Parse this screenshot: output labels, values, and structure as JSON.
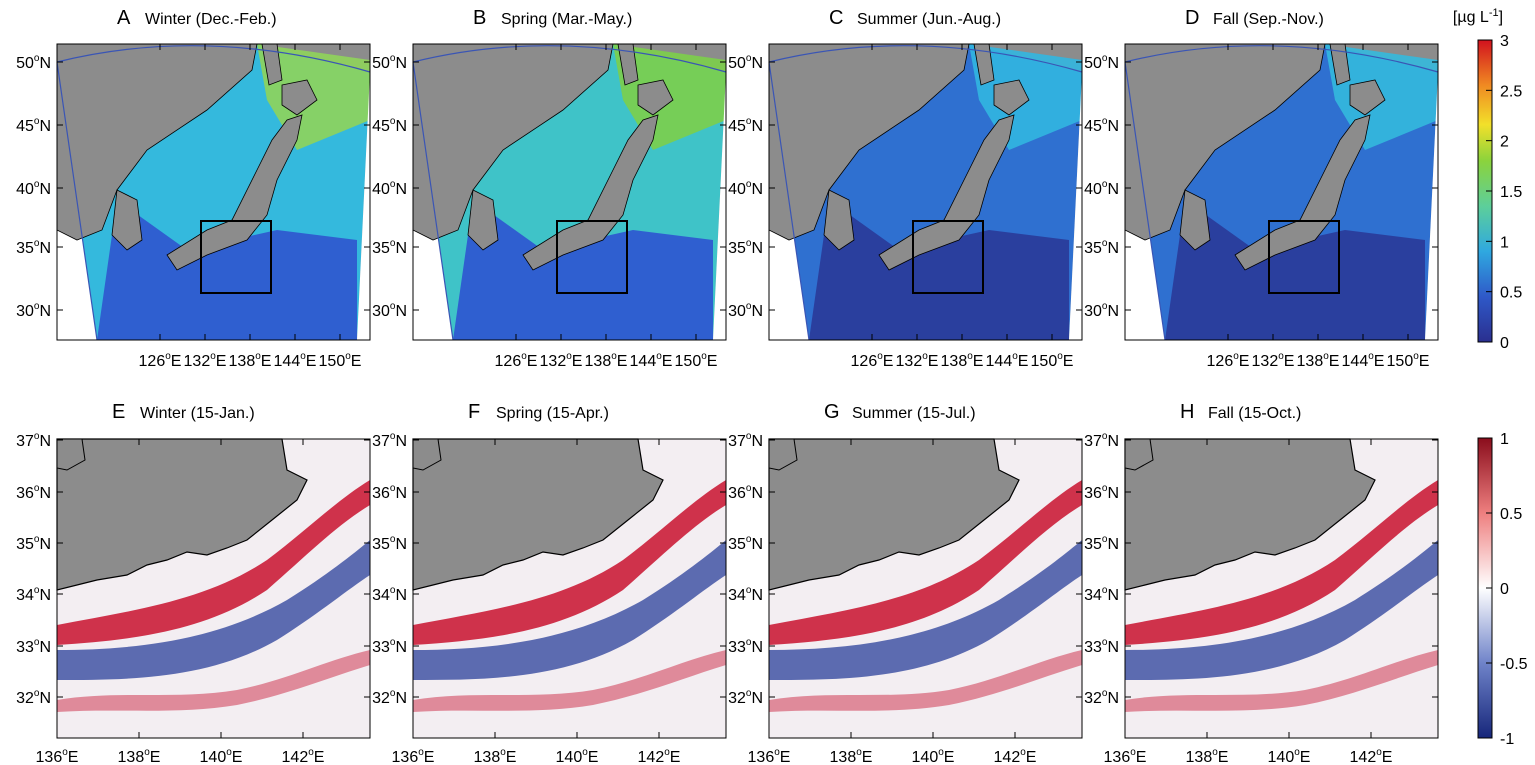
{
  "colors": {
    "land": "#8c8c8c",
    "ocean_low": "#2b3f9e",
    "ocean_mid": "#32b6e0",
    "ocean_high": "#e2322a",
    "anomaly_pos": "#c8102e",
    "anomaly_neg": "#2a3f9a",
    "frame": "#000000"
  },
  "colorbar_top": {
    "unit_label": "[µg L",
    "unit_exp": "-1",
    "unit_close": "]",
    "ticks": [
      "3",
      "2.5",
      "2",
      "1.5",
      "1",
      "0.5",
      "0"
    ]
  },
  "colorbar_bottom": {
    "ticks": [
      "1",
      "0.5",
      "0",
      "-0.5",
      "-1"
    ]
  },
  "top_row": {
    "lat_labels": [
      "50",
      "45",
      "40",
      "35",
      "30"
    ],
    "lon_labels": [
      "126",
      "132",
      "138",
      "144",
      "150"
    ],
    "panels": [
      {
        "letter": "A",
        "title": "Winter (Dec.-Feb.)"
      },
      {
        "letter": "B",
        "title": "Spring (Mar.-May.)"
      },
      {
        "letter": "C",
        "title": "Summer (Jun.-Aug.)"
      },
      {
        "letter": "D",
        "title": "Fall (Sep.-Nov.)"
      }
    ]
  },
  "bottom_row": {
    "lat_labels": [
      "37",
      "36",
      "35",
      "34",
      "33",
      "32"
    ],
    "lon_labels": [
      "136",
      "138",
      "140",
      "142"
    ],
    "panels": [
      {
        "letter": "E",
        "title": "Winter (15-Jan.)"
      },
      {
        "letter": "F",
        "title": "Spring (15-Apr.)"
      },
      {
        "letter": "G",
        "title": "Summer (15-Jul.)"
      },
      {
        "letter": "H",
        "title": "Fall (15-Oct.)"
      }
    ]
  }
}
